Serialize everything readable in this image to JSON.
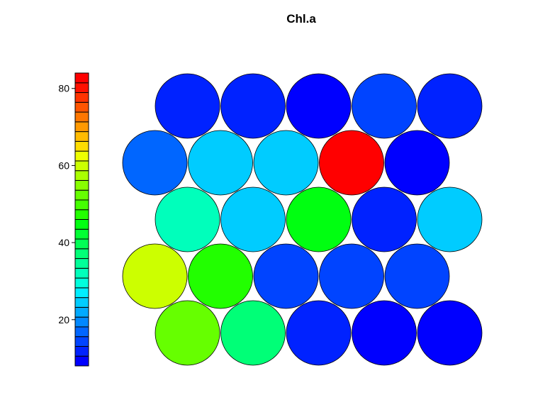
{
  "chart_data": {
    "type": "heatmap",
    "subtype": "som-hexagonal-property-map",
    "title": "Chl.a",
    "variable": "Chl.a",
    "grid": {
      "rows": 5,
      "cols": 5,
      "topology": "hexagonal"
    },
    "scale": {
      "min": 8,
      "max": 84,
      "ticks": [
        20,
        40,
        60,
        80
      ],
      "colors": [
        "#0000ff",
        "#0022ff",
        "#0044ff",
        "#0066ff",
        "#0088ff",
        "#00aaff",
        "#00ccff",
        "#00eeff",
        "#00ffdd",
        "#00ffbb",
        "#00ff99",
        "#00ff77",
        "#00ff55",
        "#00ff33",
        "#00ff11",
        "#22ff00",
        "#44ff00",
        "#66ff00",
        "#88ff00",
        "#aaff00",
        "#ccff00",
        "#eeff00",
        "#ffdd00",
        "#ffbb00",
        "#ff9900",
        "#ff7700",
        "#ff5500",
        "#ff3300",
        "#ff1100",
        "#ff0000"
      ]
    },
    "rows_top_to_bottom": [
      {
        "row": 1,
        "offset": "right",
        "values": [
          13,
          13,
          10,
          14,
          11
        ]
      },
      {
        "row": 2,
        "offset": "left",
        "values": [
          18,
          25,
          25,
          84,
          8
        ]
      },
      {
        "row": 3,
        "offset": "right",
        "values": [
          32,
          25,
          45,
          12,
          25
        ]
      },
      {
        "row": 4,
        "offset": "left",
        "values": [
          59,
          48,
          14,
          14,
          14
        ]
      },
      {
        "row": 5,
        "offset": "right",
        "values": [
          52,
          38,
          11,
          8,
          8
        ]
      }
    ]
  }
}
